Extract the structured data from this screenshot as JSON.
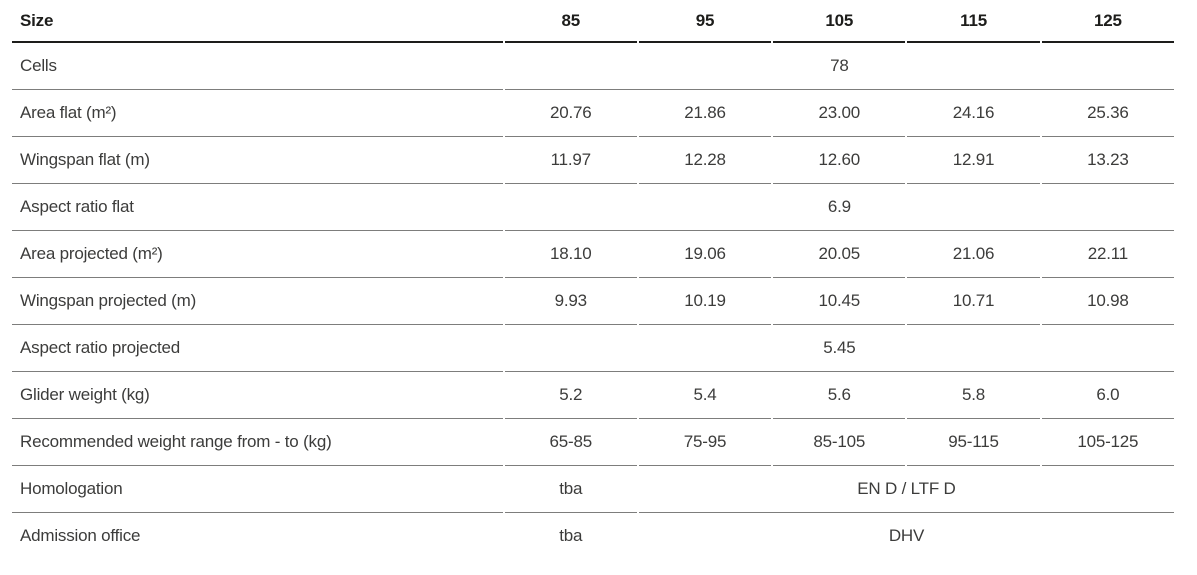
{
  "table": {
    "header": {
      "label": "Size",
      "sizes": [
        "85",
        "95",
        "105",
        "115",
        "125"
      ]
    },
    "rows": [
      {
        "label": "Cells",
        "value": "78"
      },
      {
        "label": "Area flat (m²)",
        "values": [
          "20.76",
          "21.86",
          "23.00",
          "24.16",
          "25.36"
        ]
      },
      {
        "label": "Wingspan flat (m)",
        "values": [
          "11.97",
          "12.28",
          "12.60",
          "12.91",
          "13.23"
        ]
      },
      {
        "label": "Aspect ratio flat",
        "value": "6.9"
      },
      {
        "label": "Area projected (m²)",
        "values": [
          "18.10",
          "19.06",
          "20.05",
          "21.06",
          "22.11"
        ]
      },
      {
        "label": "Wingspan projected (m)",
        "values": [
          "9.93",
          "10.19",
          "10.45",
          "10.71",
          "10.98"
        ]
      },
      {
        "label": "Aspect ratio projected",
        "value": "5.45"
      },
      {
        "label": "Glider weight (kg)",
        "values": [
          "5.2",
          "5.4",
          "5.6",
          "5.8",
          "6.0"
        ]
      },
      {
        "label": "Recommended weight range from - to (kg)",
        "values": [
          "65-85",
          "75-95",
          "85-105",
          "95-115",
          "105-125"
        ]
      },
      {
        "label": "Homologation",
        "first": "tba",
        "rest": "EN D / LTF D"
      },
      {
        "label": "Admission office",
        "first": "tba",
        "rest": "DHV"
      }
    ],
    "colors": {
      "header_text": "#1d1d1b",
      "body_text": "#3c3c3b",
      "header_rule": "#1d1d1b",
      "row_rule": "#7d7d7c"
    }
  }
}
